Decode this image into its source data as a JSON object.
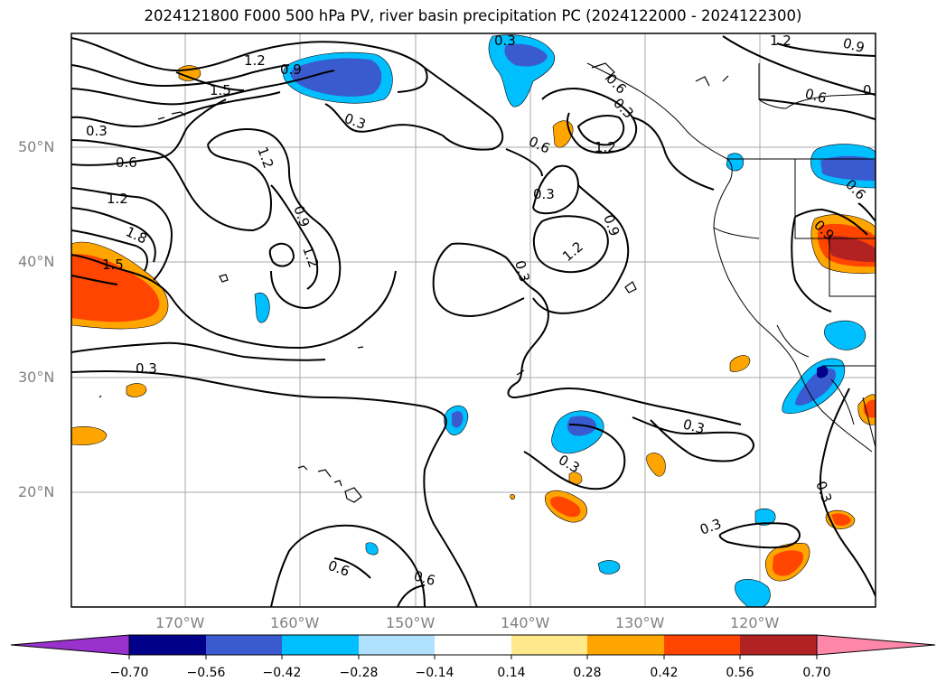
{
  "title": "2024121800 F000 500 hPa PV, river basin precipitation PC (2024122000 - 2024122300)",
  "map": {
    "lat_labels": [
      "50°N",
      "40°N",
      "30°N",
      "20°N"
    ],
    "lon_labels": [
      "170°W",
      "160°W",
      "150°W",
      "140°W",
      "130°W",
      "120°W"
    ],
    "contour_labels": [
      "0.3",
      "1.2",
      "0.9",
      "1.5",
      "1.2",
      "0.9",
      "0.3",
      "0.3",
      "0.6",
      "0.6",
      "1.2",
      "1.2",
      "1.8",
      "1.5",
      "1.2",
      "0.9",
      "1.2",
      "0.3",
      "0.6",
      "1.2",
      "0.3",
      "0.9",
      "1.2",
      "0.3",
      "0.3",
      "0.3",
      "0.3",
      "0.6",
      "0.6",
      "0.3",
      "0.3",
      "1.2",
      "0.6",
      "0.9",
      "0.6",
      "0.9",
      "0.3",
      "0.6",
      "0.3"
    ]
  },
  "colorbar": {
    "ticks": [
      "−0.70",
      "−0.56",
      "−0.42",
      "−0.28",
      "−0.14",
      "0.14",
      "0.28",
      "0.42",
      "0.56",
      "0.70"
    ],
    "colors": [
      "#9932cc",
      "#00008b",
      "#3a5bd0",
      "#00bfff",
      "#b0e2ff",
      "#ffffff",
      "#ffe98a",
      "#ffa500",
      "#ff4500",
      "#b22222",
      "#ff88aa"
    ]
  }
}
